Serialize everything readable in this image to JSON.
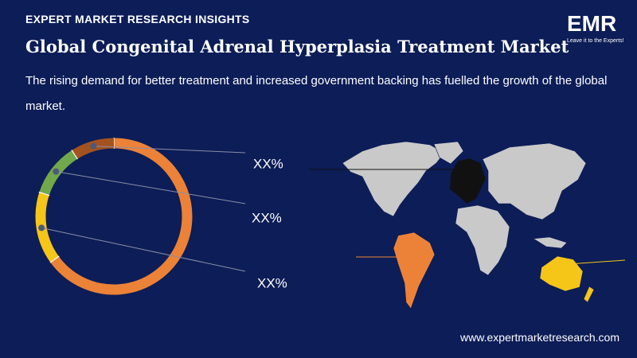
{
  "header": {
    "brand": "EXPERT MARKET RESEARCH INSIGHTS",
    "logo": "EMR",
    "tagline": "Leave it to the Experts!"
  },
  "chart_data": {
    "type": "donut",
    "title": "Global Congenital Adrenal Hyperplasia Treatment Market",
    "subtitle": "The rising demand for better treatment and increased government backing has fuelled the growth of the global market.",
    "values": [
      65,
      15,
      11,
      9
    ],
    "colors": [
      "#ec8237",
      "#f5c518",
      "#70a84b",
      "#a4521f"
    ],
    "annotations": [
      "XX%",
      "XX%",
      "XX%"
    ]
  },
  "footer": {
    "website": "www.expertmarketresearch.com"
  }
}
